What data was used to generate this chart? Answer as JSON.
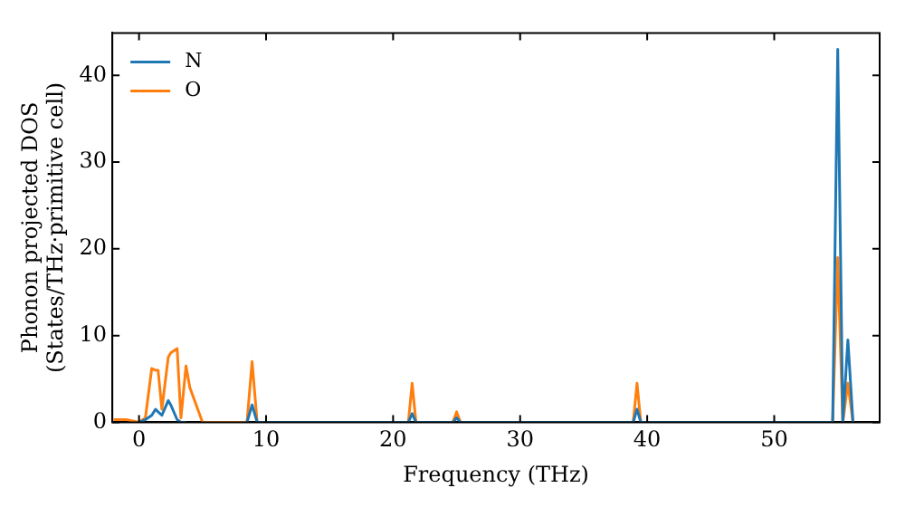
{
  "chart_data": {
    "type": "line",
    "xlabel": "Frequency (THz)",
    "ylabel": "Phonon projected DOS\n(States/THz·primitive cell)",
    "x": [
      -2,
      -1,
      0,
      0.5,
      1,
      1.3,
      1.5,
      1.8,
      2.3,
      2.5,
      3,
      3.3,
      3.7,
      4,
      5,
      8.5,
      8.9,
      9.3,
      21.2,
      21.5,
      21.8,
      24.7,
      25,
      25.3,
      38.9,
      39.2,
      39.5,
      54.6,
      55,
      55.4,
      55.8,
      56.2
    ],
    "series": [
      {
        "name": "N",
        "color": "#1f77b4",
        "values": [
          null,
          null,
          0,
          0.3,
          0.8,
          1.5,
          1.2,
          0.8,
          2.5,
          2,
          0.3,
          0,
          0,
          null,
          null,
          0,
          2,
          0,
          0,
          1,
          0,
          0,
          0.5,
          0,
          0,
          1.5,
          0,
          0,
          43,
          0,
          9.5,
          0
        ]
      },
      {
        "name": "O",
        "color": "#ff7f0e",
        "values": [
          0.3,
          0.3,
          0,
          0.5,
          6.2,
          6,
          6,
          1.5,
          7.5,
          8,
          8.5,
          0.5,
          6.5,
          4,
          0,
          0,
          7,
          0,
          0,
          4.5,
          0,
          0,
          1.2,
          0,
          0,
          4.5,
          0,
          0,
          19,
          0,
          4.5,
          0
        ]
      }
    ],
    "xlim": [
      -2.1,
      58.3
    ],
    "xticks": [
      0,
      10,
      20,
      30,
      40,
      50
    ],
    "ylim": [
      0,
      44.9
    ],
    "yticks": [
      0,
      10,
      20,
      30,
      40
    ],
    "grid": false,
    "legend": "top left",
    "marker": "none",
    "line_style": "solid"
  }
}
